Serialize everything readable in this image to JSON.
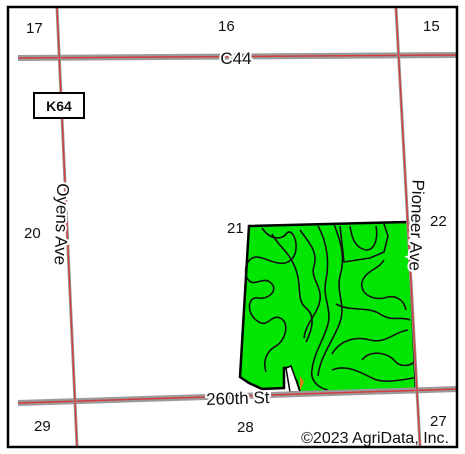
{
  "map": {
    "sections": {
      "s17": "17",
      "s16": "16",
      "s15": "15",
      "s20": "20",
      "s21": "21",
      "s22": "22",
      "s29": "29",
      "s28": "28",
      "s27": "27"
    },
    "roads": {
      "c44": "C44",
      "oyens": "Oyens Ave",
      "pioneer": "Pioneer Ave",
      "street260": "260th St"
    },
    "shield": "K64",
    "copyright": "©2023 AgriData, Inc.",
    "colors": {
      "field": "#00e600",
      "road": "#d23c3c",
      "road_shadow": "#9a9a9a",
      "soil_line": "#111111",
      "border": "#000000"
    }
  }
}
